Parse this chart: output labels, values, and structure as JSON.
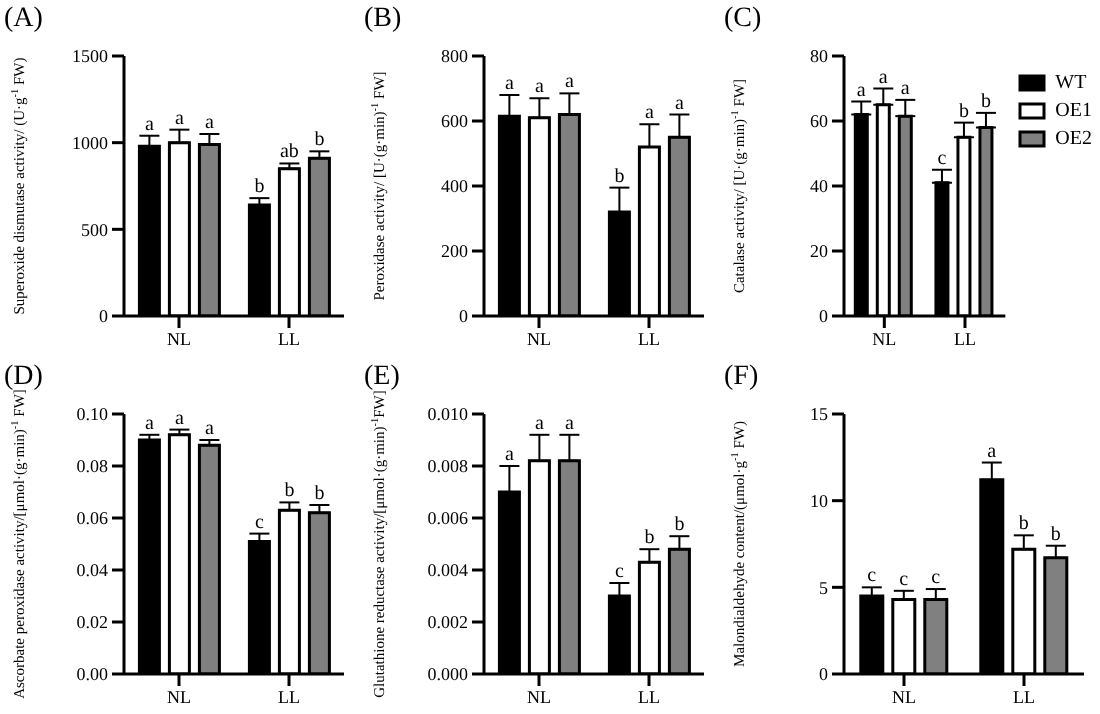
{
  "chart_data": [
    {
      "type": "bar",
      "title": "(A)",
      "ylabel": "Superoxide dismutase activity/ (U·g$^{-1}$ FW)",
      "categories": [
        "NL",
        "LL"
      ],
      "ylim": [
        0,
        1500
      ],
      "yticks": [
        0,
        500,
        1000,
        1500
      ],
      "legend": false,
      "series": [
        {
          "color": "#000000",
          "values": [
            980,
            640
          ],
          "errors": [
            60,
            40
          ],
          "value_labels": [
            "a",
            "b"
          ]
        },
        {
          "color": "#ffffff",
          "values": [
            1000,
            850
          ],
          "errors": [
            75,
            30
          ],
          "value_labels": [
            "a",
            "ab"
          ]
        },
        {
          "color": "#808080",
          "values": [
            990,
            910
          ],
          "errors": [
            60,
            40
          ],
          "value_labels": [
            "a",
            "b"
          ]
        }
      ]
    },
    {
      "type": "bar",
      "title": "(B)",
      "ylabel": "Peroxidase activity/ [U·(g·min)$^{-1}$ FW]",
      "categories": [
        "NL",
        "LL"
      ],
      "ylim": [
        0,
        800
      ],
      "yticks": [
        0,
        200,
        400,
        600,
        800
      ],
      "legend": false,
      "series": [
        {
          "color": "#000000",
          "values": [
            615,
            320
          ],
          "errors": [
            65,
            75
          ],
          "value_labels": [
            "a",
            "b"
          ]
        },
        {
          "color": "#ffffff",
          "values": [
            610,
            520
          ],
          "errors": [
            60,
            70
          ],
          "value_labels": [
            "a",
            "a"
          ]
        },
        {
          "color": "#808080",
          "values": [
            620,
            550
          ],
          "errors": [
            65,
            70
          ],
          "value_labels": [
            "a",
            "a"
          ]
        }
      ]
    },
    {
      "type": "bar",
      "title": "(C)",
      "ylabel": "Catalase activity/ [U·(g·min)$^{-1}$ FW]",
      "categories": [
        "NL",
        "LL"
      ],
      "ylim": [
        0,
        80
      ],
      "yticks": [
        0,
        20,
        40,
        60,
        80
      ],
      "legend": "top right",
      "series": [
        {
          "name": "WT",
          "color": "#000000",
          "values": [
            62,
            41
          ],
          "errors": [
            4,
            4
          ],
          "value_labels": [
            "a",
            "c"
          ]
        },
        {
          "name": "OE1",
          "color": "#ffffff",
          "values": [
            65,
            55
          ],
          "errors": [
            5,
            4.5
          ],
          "value_labels": [
            "a",
            "b"
          ]
        },
        {
          "name": "OE2",
          "color": "#808080",
          "values": [
            61.5,
            58
          ],
          "errors": [
            5,
            4.5
          ],
          "value_labels": [
            "a",
            "b"
          ]
        }
      ]
    },
    {
      "type": "bar",
      "title": "(D)",
      "ylabel": "Ascorbate peroxidase activity/[μmol·(g·min)$^{-1}$ FW]",
      "categories": [
        "NL",
        "LL"
      ],
      "ylim": [
        0,
        0.1
      ],
      "yticks": [
        {
          "value": 0,
          "label": "0.00"
        },
        {
          "value": 0.02,
          "label": "0.02"
        },
        {
          "value": 0.04,
          "label": "0.04"
        },
        {
          "value": 0.06,
          "label": "0.06"
        },
        {
          "value": 0.08,
          "label": "0.08"
        },
        {
          "value": 0.1,
          "label": "0.10"
        }
      ],
      "legend": false,
      "series": [
        {
          "color": "#000000",
          "values": [
            0.09,
            0.051
          ],
          "errors": [
            0.002,
            0.003
          ],
          "value_labels": [
            "a",
            "c"
          ]
        },
        {
          "color": "#ffffff",
          "values": [
            0.092,
            0.063
          ],
          "errors": [
            0.002,
            0.003
          ],
          "value_labels": [
            "a",
            "b"
          ]
        },
        {
          "color": "#808080",
          "values": [
            0.088,
            0.062
          ],
          "errors": [
            0.002,
            0.003
          ],
          "value_labels": [
            "a",
            "b"
          ]
        }
      ]
    },
    {
      "type": "bar",
      "title": "(E)",
      "ylabel": "Glutathione reductase activity/[μmol·(g·min)$^{-1}$FW]",
      "categories": [
        "NL",
        "LL"
      ],
      "ylim": [
        0,
        0.01
      ],
      "yticks": [
        {
          "value": 0,
          "label": "0.000"
        },
        {
          "value": 0.002,
          "label": "0.002"
        },
        {
          "value": 0.004,
          "label": "0.004"
        },
        {
          "value": 0.006,
          "label": "0.006"
        },
        {
          "value": 0.008,
          "label": "0.008"
        },
        {
          "value": 0.01,
          "label": "0.010"
        }
      ],
      "legend": false,
      "series": [
        {
          "color": "#000000",
          "values": [
            0.007,
            0.003
          ],
          "errors": [
            0.001,
            0.0005
          ],
          "value_labels": [
            "a",
            "c"
          ]
        },
        {
          "color": "#ffffff",
          "values": [
            0.0082,
            0.0043
          ],
          "errors": [
            0.001,
            0.0005
          ],
          "value_labels": [
            "a",
            "b"
          ]
        },
        {
          "color": "#808080",
          "values": [
            0.0082,
            0.0048
          ],
          "errors": [
            0.001,
            0.0005
          ],
          "value_labels": [
            "a",
            "b"
          ]
        }
      ]
    },
    {
      "type": "bar",
      "title": "(F)",
      "ylabel": "Malondialdehyde content/(μmol·g$^{-1}$ FW)",
      "categories": [
        "NL",
        "LL"
      ],
      "ylim": [
        0,
        15
      ],
      "yticks": [
        0,
        5,
        10,
        15
      ],
      "legend": false,
      "series": [
        {
          "color": "#000000",
          "values": [
            4.5,
            11.2
          ],
          "errors": [
            0.5,
            1
          ],
          "value_labels": [
            "c",
            "a"
          ]
        },
        {
          "color": "#ffffff",
          "values": [
            4.3,
            7.2
          ],
          "errors": [
            0.5,
            0.8
          ],
          "value_labels": [
            "c",
            "b"
          ]
        },
        {
          "color": "#808080",
          "values": [
            4.3,
            6.7
          ],
          "errors": [
            0.6,
            0.7
          ],
          "value_labels": [
            "c",
            "b"
          ]
        }
      ]
    }
  ]
}
